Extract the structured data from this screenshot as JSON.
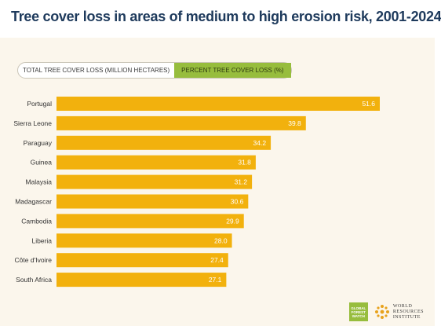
{
  "title": "Tree cover loss in areas of medium to high erosion risk, 2001-2024",
  "toggle": {
    "option_total": "TOTAL TREE COVER LOSS (MILLION HECTARES)",
    "option_percent": "PERCENT TREE COVER LOSS (%)",
    "active": "percent"
  },
  "logos": {
    "gfw_line1": "GLOBAL",
    "gfw_line2": "FOREST",
    "gfw_line3": "WATCH",
    "wri_line1": "WORLD",
    "wri_line2": "RESOURCES",
    "wri_line3": "INSTITUTE"
  },
  "colors": {
    "bar": "#f2b10d",
    "title": "#1e3a5c",
    "panel": "#fbf6ec",
    "toggle_active": "#97bd3d",
    "gfw": "#97bd3d",
    "wri": "#e8a21c"
  },
  "chart_data": {
    "type": "bar",
    "orientation": "horizontal",
    "title": "Tree cover loss in areas of medium to high erosion risk, 2001-2024",
    "unit": "%",
    "categories": [
      "Portugal",
      "Sierra Leone",
      "Paraguay",
      "Guinea",
      "Malaysia",
      "Madagascar",
      "Cambodia",
      "Liberia",
      "Côte d'Ivoire",
      "South Africa"
    ],
    "values": [
      51.6,
      39.8,
      34.2,
      31.8,
      31.2,
      30.6,
      29.9,
      28.0,
      27.4,
      27.1
    ],
    "labels": [
      "51.6",
      "39.8",
      "34.2",
      "31.8",
      "31.2",
      "30.6",
      "29.9",
      "28.0",
      "27.4",
      "27.1"
    ],
    "xlim": [
      0,
      51.6
    ],
    "grid": false,
    "legend": "none"
  }
}
